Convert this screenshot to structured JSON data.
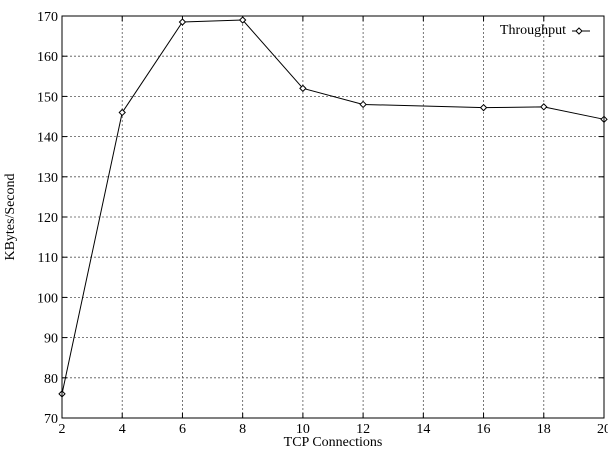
{
  "chart_data": {
    "type": "line",
    "title": "",
    "xlabel": "TCP Connections",
    "ylabel": "KBytes/Second",
    "xlim": [
      2,
      20
    ],
    "ylim": [
      70,
      170
    ],
    "x_ticks": [
      2,
      4,
      6,
      8,
      10,
      12,
      14,
      16,
      18,
      20
    ],
    "y_ticks": [
      70,
      80,
      90,
      100,
      110,
      120,
      130,
      140,
      150,
      160,
      170
    ],
    "grid": true,
    "legend_position": "top-right",
    "series": [
      {
        "name": "Throughput",
        "marker": "diamond",
        "color": "#000000",
        "x": [
          2,
          4,
          6,
          8,
          10,
          12,
          16,
          18,
          20
        ],
        "y": [
          76,
          146,
          168.5,
          169,
          152,
          148,
          147.2,
          147.4,
          144.3
        ]
      }
    ]
  }
}
